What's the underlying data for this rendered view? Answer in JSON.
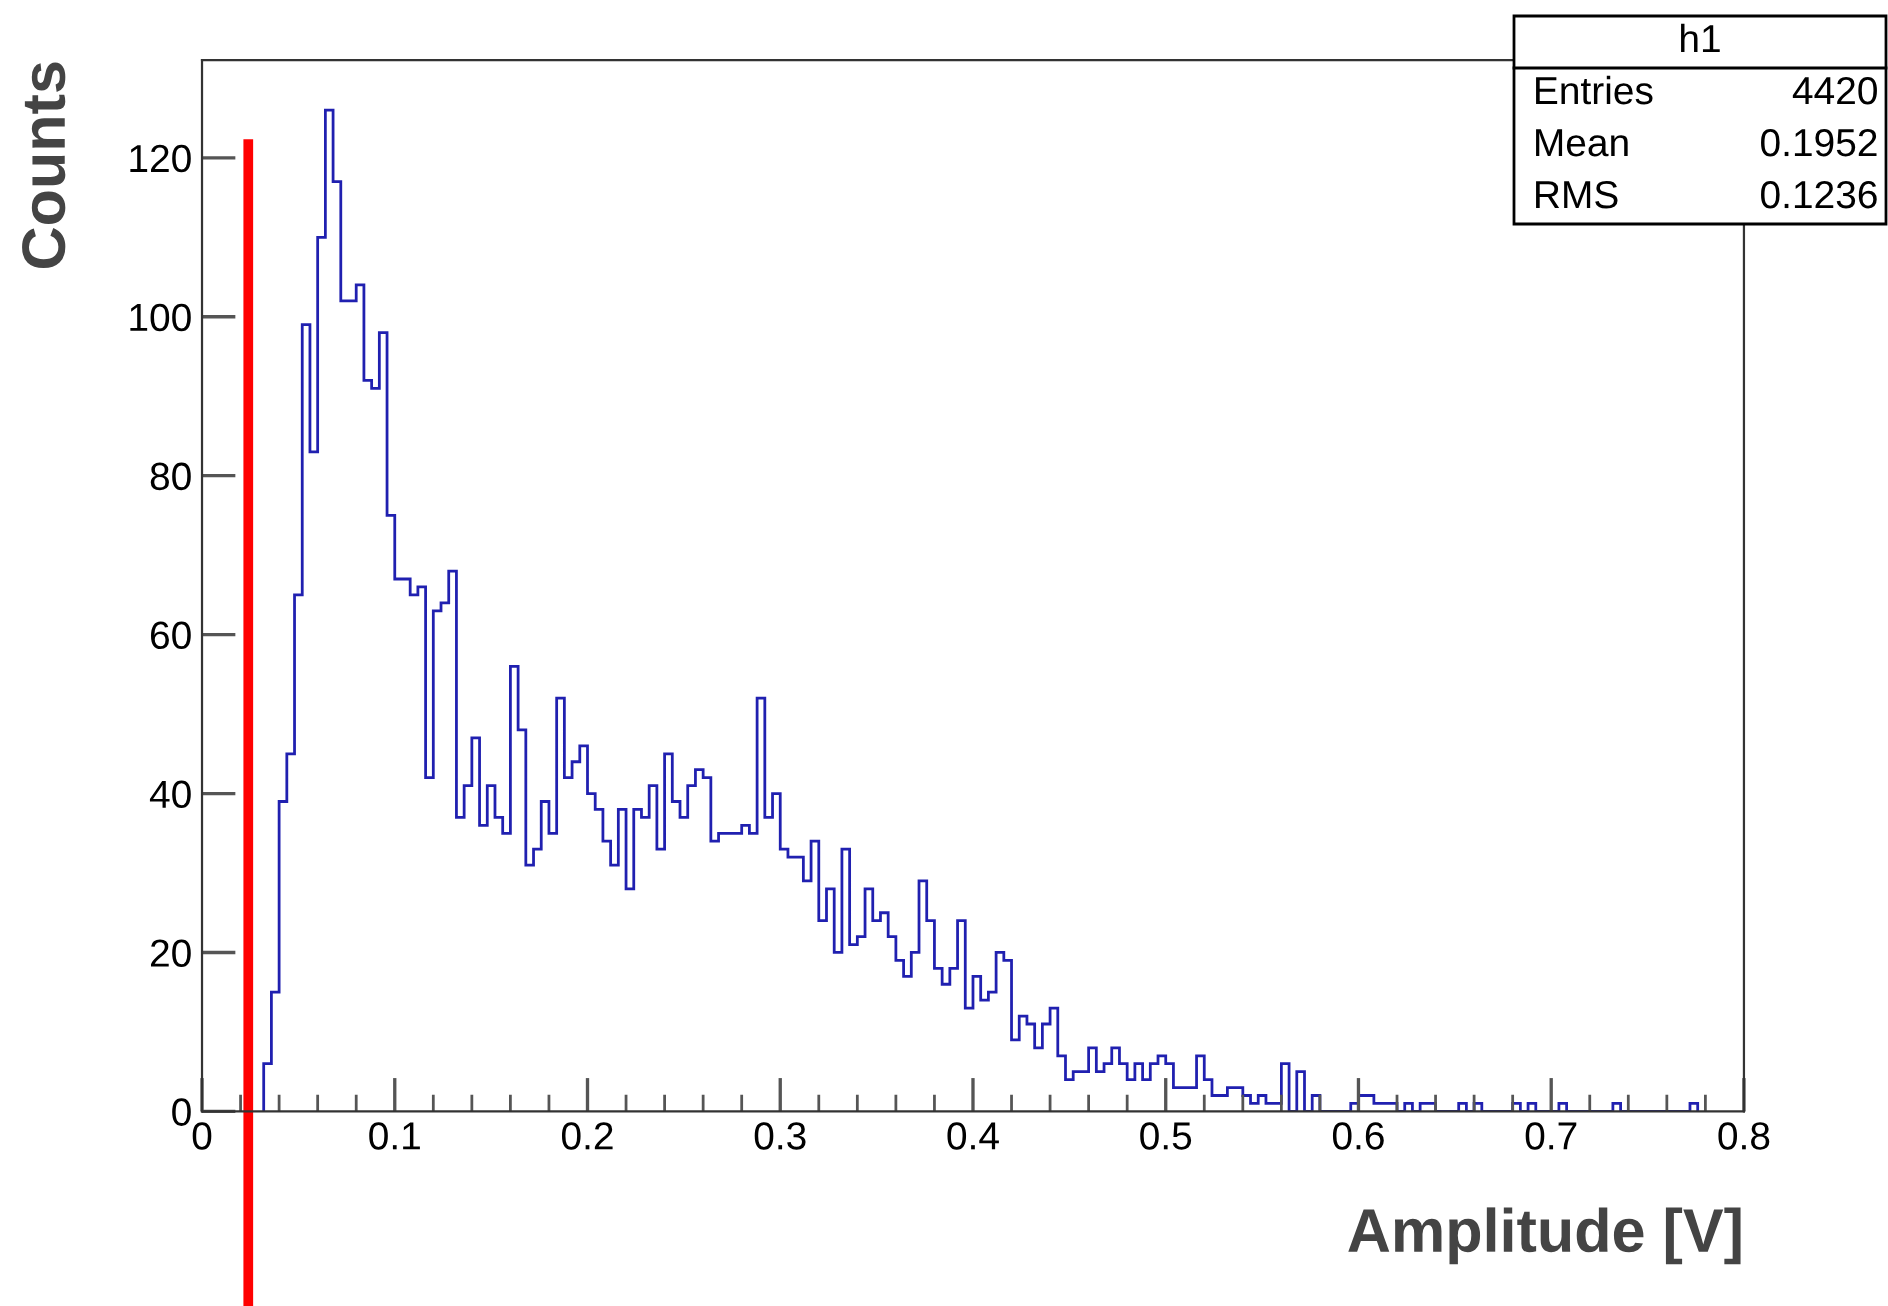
{
  "chart_data": {
    "type": "histogram",
    "xlabel": "Amplitude [V]",
    "ylabel": "Counts",
    "color": "#2020b0",
    "bins": [
      0.032,
      0.036,
      0.04,
      0.044,
      0.048,
      0.052,
      0.056,
      0.06,
      0.064,
      0.068,
      0.072,
      0.076,
      0.08,
      0.084,
      0.088,
      0.092,
      0.096,
      0.1,
      0.104,
      0.108,
      0.112,
      0.116,
      0.12,
      0.124,
      0.128,
      0.132,
      0.136,
      0.14,
      0.144,
      0.148,
      0.152,
      0.156,
      0.16,
      0.164,
      0.168,
      0.172,
      0.176,
      0.18,
      0.184,
      0.188,
      0.192,
      0.196,
      0.2,
      0.204,
      0.208,
      0.212,
      0.216,
      0.22,
      0.224,
      0.228,
      0.232,
      0.236,
      0.24,
      0.244,
      0.248,
      0.252,
      0.256,
      0.26,
      0.264,
      0.268,
      0.272,
      0.276,
      0.28,
      0.284,
      0.288,
      0.292,
      0.296,
      0.3,
      0.304,
      0.308,
      0.312,
      0.316,
      0.32,
      0.324,
      0.328,
      0.332,
      0.336,
      0.34,
      0.344,
      0.348,
      0.352,
      0.356,
      0.36,
      0.364,
      0.368,
      0.372,
      0.376,
      0.38,
      0.384,
      0.388,
      0.392,
      0.396,
      0.4,
      0.404,
      0.408,
      0.412,
      0.416,
      0.42,
      0.424,
      0.428,
      0.432,
      0.436,
      0.44,
      0.444,
      0.448,
      0.452,
      0.456,
      0.46,
      0.464,
      0.468,
      0.472,
      0.476,
      0.48,
      0.484,
      0.488,
      0.492,
      0.496,
      0.5,
      0.504,
      0.508,
      0.512,
      0.516,
      0.52,
      0.524,
      0.528,
      0.532,
      0.536,
      0.54,
      0.544,
      0.548,
      0.552,
      0.556,
      0.56,
      0.564,
      0.568,
      0.572,
      0.576,
      0.58,
      0.584,
      0.588,
      0.592,
      0.596,
      0.6,
      0.604,
      0.608,
      0.612,
      0.616,
      0.62,
      0.624,
      0.628,
      0.632,
      0.636,
      0.64,
      0.644,
      0.648,
      0.652,
      0.656,
      0.66,
      0.664,
      0.668,
      0.672,
      0.676,
      0.68,
      0.684,
      0.688,
      0.692,
      0.696,
      0.7,
      0.704,
      0.708,
      0.712,
      0.716,
      0.72,
      0.724,
      0.728,
      0.732,
      0.736,
      0.74,
      0.744,
      0.748,
      0.752,
      0.756,
      0.76,
      0.764,
      0.768,
      0.772,
      0.776
    ],
    "values": [
      6,
      15,
      39,
      45,
      65,
      99,
      83,
      110,
      126,
      117,
      102,
      102,
      104,
      92,
      91,
      98,
      75,
      67,
      67,
      65,
      66,
      42,
      63,
      64,
      68,
      37,
      41,
      47,
      36,
      41,
      37,
      35,
      56,
      48,
      31,
      33,
      39,
      35,
      52,
      42,
      44,
      46,
      40,
      38,
      34,
      31,
      38,
      28,
      38,
      37,
      41,
      33,
      45,
      39,
      37,
      41,
      43,
      42,
      34,
      35,
      35,
      35,
      36,
      35,
      52,
      37,
      40,
      33,
      32,
      32,
      29,
      34,
      24,
      28,
      20,
      33,
      21,
      22,
      28,
      24,
      25,
      22,
      19,
      17,
      20,
      29,
      24,
      18,
      16,
      18,
      24,
      13,
      17,
      14,
      15,
      20,
      19,
      9,
      12,
      11,
      8,
      11,
      13,
      7,
      4,
      5,
      5,
      8,
      5,
      6,
      8,
      6,
      4,
      6,
      4,
      6,
      7,
      6,
      3,
      3,
      3,
      7,
      4,
      2,
      2,
      3,
      3,
      2,
      1,
      2,
      1,
      1,
      6,
      0,
      5,
      0,
      2,
      0,
      0,
      0,
      0,
      1,
      2,
      2,
      1,
      1,
      1,
      0,
      1,
      0,
      1,
      1,
      0,
      0,
      0,
      1,
      0,
      1,
      0,
      0,
      0,
      0,
      1,
      0,
      1,
      0,
      0,
      0,
      1,
      0,
      0,
      0,
      0,
      0,
      0,
      1,
      0,
      0,
      0,
      0,
      0,
      0,
      0,
      0,
      0,
      1
    ],
    "xlim": [
      0,
      0.8
    ],
    "ylim": [
      0,
      132.3
    ],
    "xticks": [
      0,
      0.1,
      0.2,
      0.3,
      0.4,
      0.5,
      0.6,
      0.7,
      0.8
    ],
    "yticks": [
      0,
      20,
      40,
      60,
      80,
      100,
      120
    ],
    "ref_lines": [
      {
        "axis": "x",
        "value": 0.024,
        "color": "#ff0000"
      }
    ],
    "annotations": [
      "h1",
      "Entries",
      "4420",
      "Mean",
      "0.1952",
      "RMS",
      "0.1236"
    ]
  }
}
